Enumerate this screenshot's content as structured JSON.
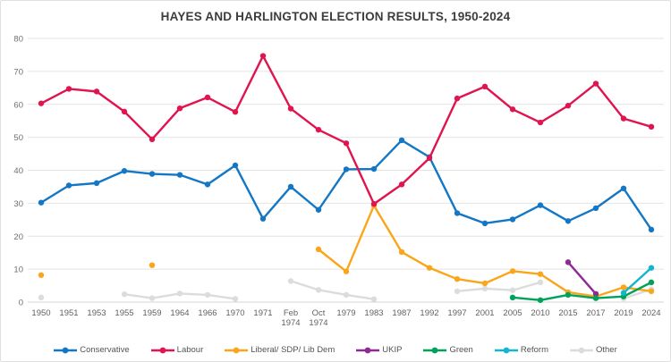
{
  "chart_data": {
    "type": "line",
    "title": "HAYES AND HARLINGTON ELECTION RESULTS, 1950-2024",
    "xlabel": "",
    "ylabel": "",
    "ylim": [
      0,
      80
    ],
    "yticks": [
      0,
      10,
      20,
      30,
      40,
      50,
      60,
      70,
      80
    ],
    "grid": "horizontal",
    "legend_position": "bottom",
    "categories": [
      "1950",
      "1951",
      "1953",
      "1955",
      "1959",
      "1964",
      "1966",
      "1970",
      "1971",
      "Feb 1974",
      "Oct 1974",
      "1979",
      "1983",
      "1987",
      "1992",
      "1997",
      "2001",
      "2005",
      "2010",
      "2015",
      "2017",
      "2019",
      "2024"
    ],
    "series": [
      {
        "name": "Conservative",
        "color": "#1377C6",
        "values": [
          30.2,
          35.4,
          36.1,
          39.8,
          38.9,
          38.6,
          35.7,
          41.5,
          25.3,
          35.0,
          28.0,
          40.3,
          40.4,
          49.1,
          44.0,
          27.0,
          23.9,
          25.1,
          29.4,
          24.6,
          28.5,
          34.5,
          22.0
        ]
      },
      {
        "name": "Labour",
        "color": "#E0144E",
        "values": [
          60.3,
          64.7,
          63.9,
          57.8,
          49.4,
          58.8,
          62.1,
          57.7,
          74.7,
          58.7,
          52.3,
          48.2,
          29.8,
          35.7,
          43.7,
          61.8,
          65.4,
          58.5,
          54.5,
          59.6,
          66.3,
          55.7,
          53.2
        ]
      },
      {
        "name": "Liberal/ SDP/ Lib Dem",
        "color": "#FAA61A",
        "values": [
          8.2,
          null,
          null,
          null,
          11.2,
          null,
          null,
          null,
          null,
          null,
          16.0,
          9.3,
          29.3,
          15.2,
          10.4,
          7.0,
          5.7,
          9.4,
          8.5,
          3.0,
          1.7,
          4.5,
          3.3
        ]
      },
      {
        "name": "UKIP",
        "color": "#8F2A93",
        "values": [
          null,
          null,
          null,
          null,
          null,
          null,
          null,
          null,
          null,
          null,
          null,
          null,
          null,
          null,
          null,
          null,
          null,
          null,
          null,
          12.1,
          2.5,
          null,
          null
        ]
      },
      {
        "name": "Green",
        "color": "#00A25A",
        "values": [
          null,
          null,
          null,
          null,
          null,
          null,
          null,
          null,
          null,
          null,
          null,
          null,
          null,
          null,
          null,
          null,
          null,
          1.4,
          0.6,
          2.2,
          1.2,
          1.7,
          6.0
        ]
      },
      {
        "name": "Reform",
        "color": "#12B6CF",
        "values": [
          null,
          null,
          null,
          null,
          null,
          null,
          null,
          null,
          null,
          null,
          null,
          null,
          null,
          null,
          null,
          null,
          null,
          null,
          null,
          null,
          null,
          2.8,
          10.4
        ]
      },
      {
        "name": "Other",
        "color": "#DCDCDC",
        "values": [
          1.4,
          null,
          null,
          2.4,
          1.2,
          2.6,
          2.2,
          1.0,
          null,
          6.4,
          3.7,
          2.2,
          0.9,
          null,
          null,
          3.3,
          4.1,
          3.6,
          6.0,
          null,
          null,
          1.1,
          3.9
        ]
      }
    ]
  }
}
